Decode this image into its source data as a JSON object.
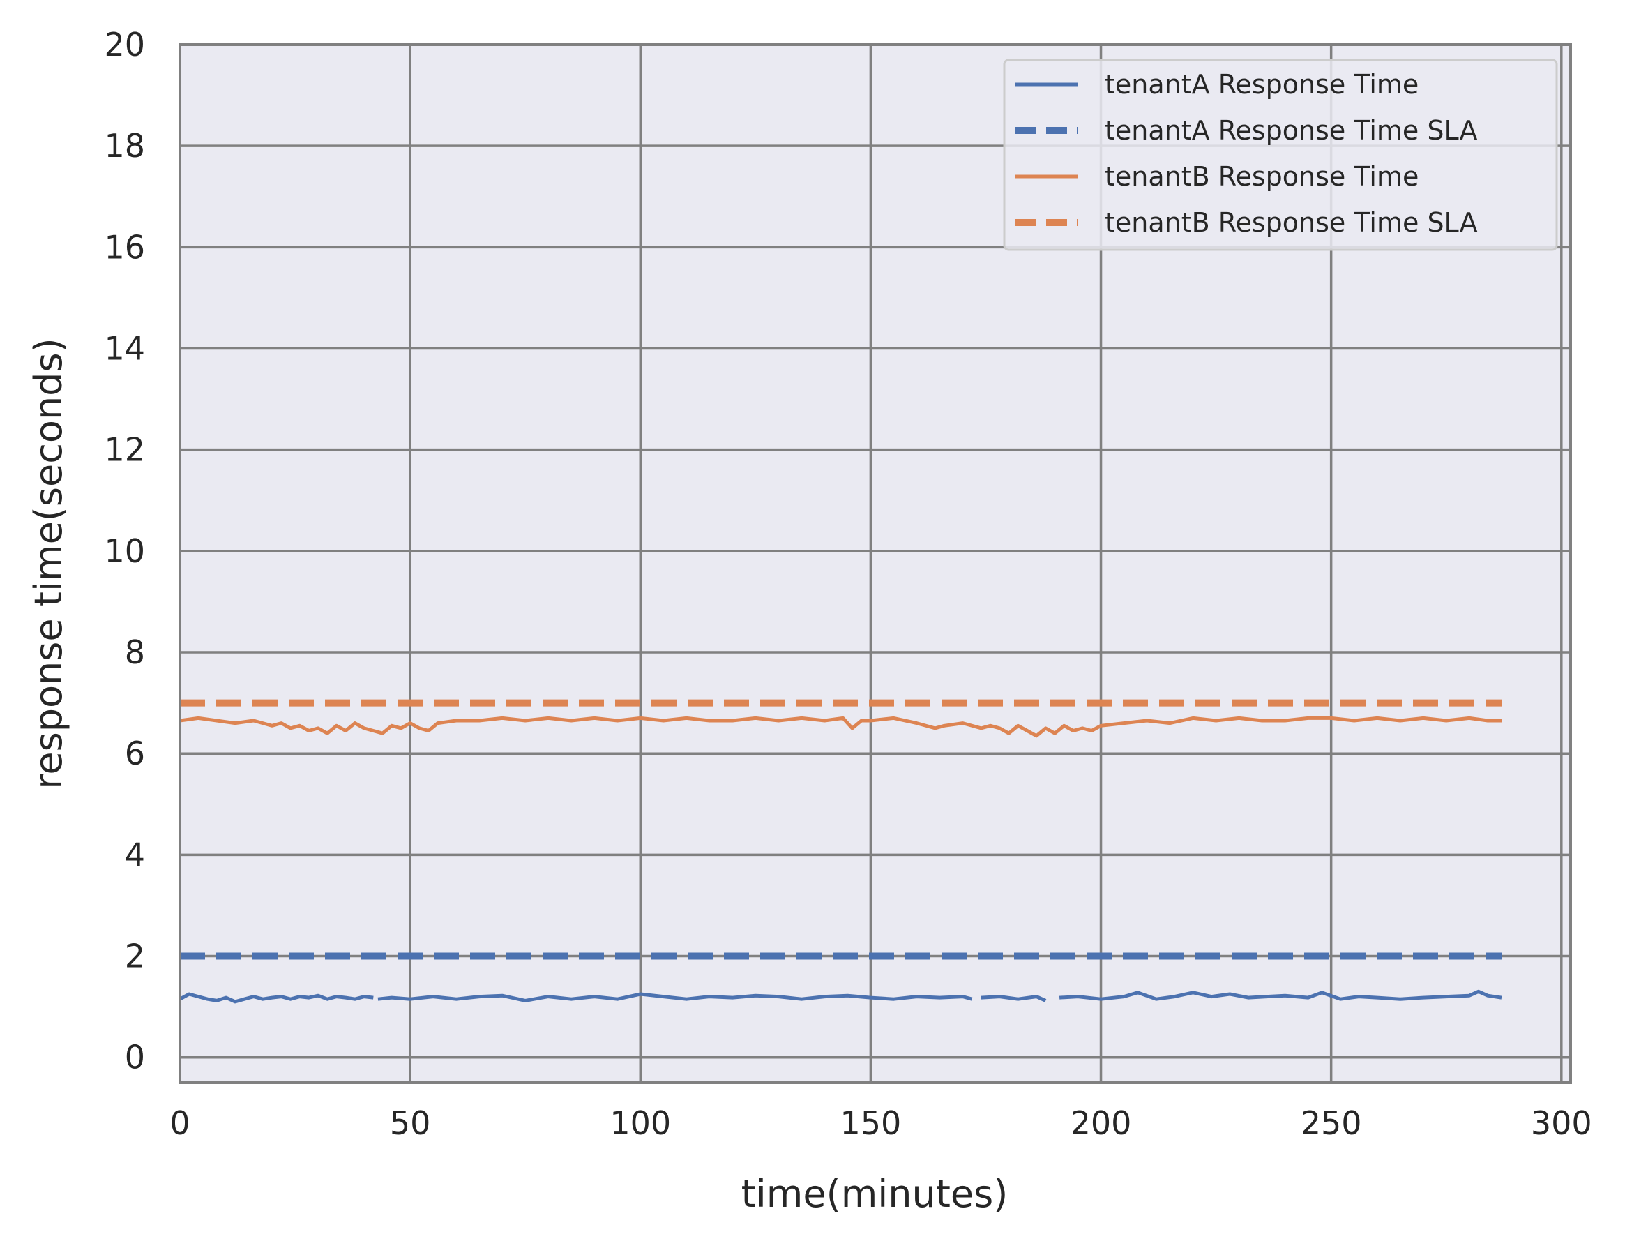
{
  "chart_data": {
    "type": "line",
    "title": "",
    "xlabel": "time(minutes)",
    "ylabel": "response time(seconds)",
    "xlim": [
      0,
      302
    ],
    "ylim": [
      -0.5,
      20
    ],
    "xticks": [
      0,
      50,
      100,
      150,
      200,
      250,
      300
    ],
    "yticks": [
      0,
      2,
      4,
      6,
      8,
      10,
      12,
      14,
      16,
      18,
      20
    ],
    "grid": true,
    "legend_position": "top-right",
    "series": [
      {
        "name": "tenantA Response Time",
        "color": "#4c72b0",
        "style": "solid",
        "x": [
          0,
          2,
          4,
          6,
          8,
          10,
          12,
          14,
          16,
          18,
          20,
          22,
          24,
          26,
          28,
          30,
          32,
          34,
          36,
          38,
          40,
          42,
          null,
          43,
          46,
          50,
          55,
          60,
          65,
          70,
          75,
          80,
          85,
          90,
          95,
          100,
          105,
          110,
          115,
          120,
          125,
          130,
          135,
          140,
          145,
          150,
          155,
          160,
          165,
          170,
          172,
          null,
          174,
          178,
          182,
          186,
          188,
          null,
          191,
          195,
          200,
          205,
          208,
          212,
          216,
          220,
          224,
          228,
          232,
          236,
          240,
          245,
          248,
          252,
          256,
          260,
          265,
          270,
          275,
          280,
          282,
          284,
          287
        ],
        "y": [
          1.15,
          1.25,
          1.2,
          1.15,
          1.12,
          1.18,
          1.1,
          1.15,
          1.2,
          1.15,
          1.18,
          1.2,
          1.15,
          1.2,
          1.18,
          1.22,
          1.15,
          1.2,
          1.18,
          1.15,
          1.2,
          1.18,
          null,
          1.15,
          1.18,
          1.15,
          1.2,
          1.15,
          1.2,
          1.22,
          1.12,
          1.2,
          1.15,
          1.2,
          1.15,
          1.25,
          1.2,
          1.15,
          1.2,
          1.18,
          1.22,
          1.2,
          1.15,
          1.2,
          1.22,
          1.18,
          1.15,
          1.2,
          1.18,
          1.2,
          1.15,
          null,
          1.18,
          1.2,
          1.15,
          1.2,
          1.12,
          null,
          1.18,
          1.2,
          1.15,
          1.2,
          1.28,
          1.15,
          1.2,
          1.28,
          1.2,
          1.25,
          1.18,
          1.2,
          1.22,
          1.18,
          1.28,
          1.15,
          1.2,
          1.18,
          1.15,
          1.18,
          1.2,
          1.22,
          1.3,
          1.22,
          1.18
        ]
      },
      {
        "name": "tenantA Response Time SLA",
        "color": "#4c72b0",
        "style": "dashed",
        "x": [
          0,
          287
        ],
        "y": [
          2,
          2
        ]
      },
      {
        "name": "tenantB Response Time",
        "color": "#dd8452",
        "style": "solid",
        "x": [
          0,
          4,
          8,
          12,
          16,
          20,
          22,
          24,
          26,
          28,
          30,
          32,
          34,
          36,
          38,
          40,
          42,
          44,
          46,
          48,
          50,
          52,
          54,
          56,
          60,
          65,
          70,
          75,
          80,
          85,
          90,
          95,
          100,
          105,
          110,
          115,
          120,
          125,
          130,
          135,
          140,
          144,
          146,
          148,
          150,
          155,
          160,
          164,
          166,
          170,
          174,
          176,
          178,
          180,
          182,
          184,
          186,
          188,
          190,
          192,
          194,
          196,
          198,
          200,
          205,
          210,
          215,
          220,
          225,
          230,
          235,
          240,
          245,
          250,
          255,
          260,
          265,
          270,
          275,
          280,
          284,
          287
        ],
        "y": [
          6.65,
          6.7,
          6.65,
          6.6,
          6.65,
          6.55,
          6.6,
          6.5,
          6.55,
          6.45,
          6.5,
          6.4,
          6.55,
          6.45,
          6.6,
          6.5,
          6.45,
          6.4,
          6.55,
          6.5,
          6.6,
          6.5,
          6.45,
          6.6,
          6.65,
          6.65,
          6.7,
          6.65,
          6.7,
          6.65,
          6.7,
          6.65,
          6.7,
          6.65,
          6.7,
          6.65,
          6.65,
          6.7,
          6.65,
          6.7,
          6.65,
          6.7,
          6.5,
          6.65,
          6.65,
          6.7,
          6.6,
          6.5,
          6.55,
          6.6,
          6.5,
          6.55,
          6.5,
          6.4,
          6.55,
          6.45,
          6.35,
          6.5,
          6.4,
          6.55,
          6.45,
          6.5,
          6.45,
          6.55,
          6.6,
          6.65,
          6.6,
          6.7,
          6.65,
          6.7,
          6.65,
          6.65,
          6.7,
          6.7,
          6.65,
          6.7,
          6.65,
          6.7,
          6.65,
          6.7,
          6.65,
          6.65
        ]
      },
      {
        "name": "tenantB Response Time SLA",
        "color": "#dd8452",
        "style": "dashed",
        "x": [
          0,
          287
        ],
        "y": [
          7,
          7
        ]
      }
    ]
  }
}
